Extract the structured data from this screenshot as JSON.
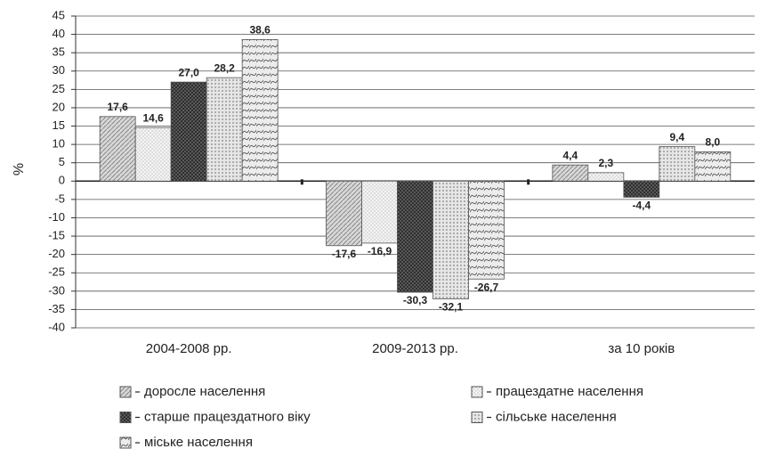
{
  "chart_data": {
    "type": "bar",
    "ylabel": "%",
    "categories": [
      "2004-2008 рр.",
      "2009-2013 рр.",
      "за 10 років"
    ],
    "series": [
      {
        "name": "доросле населення",
        "color": "#d8d8d8",
        "values": [
          17.6,
          -17.6,
          4.4
        ],
        "value_labels": [
          "17,6",
          "-17,6",
          "4,4"
        ]
      },
      {
        "name": "працездатне населення",
        "color": "#f4f4f4",
        "values": [
          14.6,
          -16.9,
          2.3
        ],
        "value_labels": [
          "14,6",
          "-16,9",
          "2,3"
        ]
      },
      {
        "name": "старше працездатного віку",
        "color": "#6a6a6a",
        "values": [
          27.0,
          -30.3,
          -4.4
        ],
        "value_labels": [
          "27,0",
          "-30,3",
          "-4,4"
        ]
      },
      {
        "name": "сільське населення",
        "color": "#e6e6e6",
        "values": [
          28.2,
          -32.1,
          9.4
        ],
        "value_labels": [
          "28,2",
          "-32,1",
          "9,4"
        ]
      },
      {
        "name": "міське населення",
        "color": "#ececec",
        "values": [
          38.6,
          -26.7,
          8.0
        ],
        "value_labels": [
          "38,6",
          "-26,7",
          "8,0"
        ]
      }
    ],
    "ylim": [
      -40,
      45
    ],
    "yticks": [
      -40,
      -35,
      -30,
      -25,
      -20,
      -15,
      -10,
      -5,
      0,
      5,
      10,
      15,
      20,
      25,
      30,
      35,
      40,
      45
    ],
    "grid": true
  }
}
